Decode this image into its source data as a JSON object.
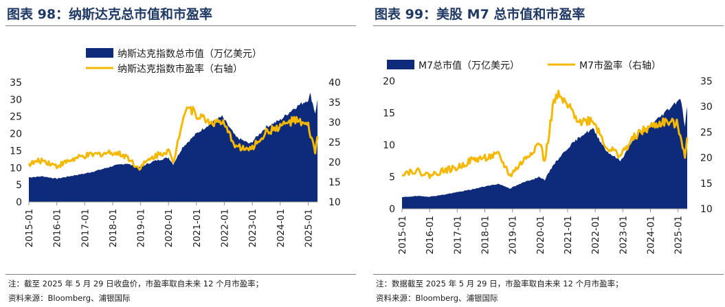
{
  "charts": [
    {
      "figure_title": "图表 98：纳斯达克总市值和市盈率",
      "note": "注：截至 2025 年 5 月 29 日收盘价，市盈率取自未来 12 个月市盈率；",
      "source": "资料来源：Bloomberg、浦银国际",
      "colors": {
        "area": "#0d2b7a",
        "line": "#f5b800"
      }
    },
    {
      "figure_title": "图表 99：美股 M7 总市值和市盈率",
      "note": "注：数据截至 2025 年 5 月 29 日，市盈率取自未来 12 个月市盈率；",
      "source": "资料来源：Bloomberg、浦银国际",
      "colors": {
        "area": "#0d2b7a",
        "line": "#f5b800"
      }
    }
  ],
  "chart_data": [
    {
      "type": "area",
      "legend": [
        "纳斯达克指数总市值（万亿美元）",
        "纳斯达克指数市盈率（右轴）"
      ],
      "legend_position": "top",
      "x_ticks": [
        "2015-01",
        "2016-01",
        "2017-01",
        "2018-01",
        "2019-01",
        "2020-01",
        "2021-01",
        "2022-01",
        "2023-01",
        "2024-01",
        "2025-01"
      ],
      "y_left": {
        "range": [
          0,
          35
        ],
        "ticks": [
          0,
          5,
          10,
          15,
          20,
          25,
          30,
          35
        ]
      },
      "y_right": {
        "range": [
          10,
          40
        ],
        "ticks": [
          10,
          15,
          20,
          25,
          30,
          35,
          40
        ]
      },
      "grid": false,
      "series": [
        {
          "name": "纳斯达克指数总市值（万亿美元）",
          "axis": "left",
          "style": "area",
          "x": [
            "2015-01",
            "2015-07",
            "2016-01",
            "2016-07",
            "2017-01",
            "2017-07",
            "2018-01",
            "2018-07",
            "2018-12",
            "2019-07",
            "2020-01",
            "2020-03",
            "2020-07",
            "2021-01",
            "2021-07",
            "2021-12",
            "2022-06",
            "2022-12",
            "2023-07",
            "2024-01",
            "2024-07",
            "2025-01",
            "2025-02",
            "2025-04",
            "2025-05"
          ],
          "values": [
            7.2,
            7.5,
            6.8,
            7.6,
            8.3,
            9.3,
            10.5,
            11.3,
            10.0,
            12.0,
            13.0,
            11.0,
            16.0,
            20.0,
            23.0,
            25.0,
            19.0,
            17.0,
            22.0,
            24.0,
            27.5,
            30.0,
            31.5,
            26.0,
            30.0
          ]
        },
        {
          "name": "纳斯达克指数市盈率（右轴）",
          "axis": "right",
          "style": "line",
          "x": [
            "2015-01",
            "2015-07",
            "2016-01",
            "2016-07",
            "2017-01",
            "2017-07",
            "2018-01",
            "2018-07",
            "2018-12",
            "2019-07",
            "2020-01",
            "2020-03",
            "2020-07",
            "2020-09",
            "2021-01",
            "2021-07",
            "2021-12",
            "2022-06",
            "2022-12",
            "2023-07",
            "2024-01",
            "2024-07",
            "2025-01",
            "2025-04",
            "2025-05"
          ],
          "values": [
            19.5,
            20.5,
            19.0,
            20.5,
            21.5,
            22.0,
            22.5,
            21.5,
            18.5,
            21.5,
            23.0,
            19.5,
            31.0,
            34.0,
            32.0,
            30.0,
            30.0,
            24.0,
            23.0,
            27.5,
            29.0,
            30.5,
            29.0,
            22.5,
            26.5
          ]
        }
      ]
    },
    {
      "type": "area",
      "legend": [
        "M7总市值（万亿美元）",
        "M7市盈率（右轴）"
      ],
      "legend_position": "top",
      "x_ticks": [
        "2015-01",
        "2016-01",
        "2017-01",
        "2018-01",
        "2019-01",
        "2020-01",
        "2021-01",
        "2022-01",
        "2023-01",
        "2024-01",
        "2025-01"
      ],
      "y_left": {
        "range": [
          0,
          20
        ],
        "ticks": [
          0,
          5,
          10,
          15,
          20
        ]
      },
      "y_right": {
        "range": [
          10,
          35
        ],
        "ticks": [
          10,
          15,
          20,
          25,
          30,
          35
        ]
      },
      "grid": false,
      "series": [
        {
          "name": "M7总市值（万亿美元）",
          "axis": "left",
          "style": "area",
          "x": [
            "2015-01",
            "2015-07",
            "2016-01",
            "2016-07",
            "2017-01",
            "2017-07",
            "2018-01",
            "2018-07",
            "2018-12",
            "2019-07",
            "2020-01",
            "2020-03",
            "2020-07",
            "2021-01",
            "2021-07",
            "2021-12",
            "2022-06",
            "2022-12",
            "2023-07",
            "2024-01",
            "2024-07",
            "2025-01",
            "2025-02",
            "2025-04",
            "2025-05"
          ],
          "values": [
            1.8,
            2.0,
            1.9,
            2.2,
            2.6,
            3.0,
            3.5,
            3.9,
            3.2,
            4.3,
            5.0,
            4.5,
            7.0,
            9.5,
            11.5,
            12.5,
            9.0,
            7.5,
            11.5,
            13.0,
            15.0,
            17.0,
            17.5,
            13.0,
            16.0
          ]
        },
        {
          "name": "M7市盈率（右轴）",
          "axis": "right",
          "style": "line",
          "x": [
            "2015-01",
            "2015-07",
            "2016-01",
            "2016-07",
            "2017-01",
            "2017-07",
            "2018-01",
            "2018-07",
            "2018-12",
            "2019-07",
            "2020-01",
            "2020-03",
            "2020-07",
            "2020-09",
            "2021-01",
            "2021-07",
            "2021-12",
            "2022-06",
            "2022-12",
            "2023-07",
            "2024-01",
            "2024-07",
            "2025-01",
            "2025-04",
            "2025-05"
          ],
          "values": [
            17.0,
            17.5,
            16.5,
            17.5,
            18.0,
            19.5,
            20.0,
            20.5,
            16.5,
            20.0,
            23.0,
            19.0,
            31.0,
            32.0,
            30.0,
            27.0,
            27.5,
            22.0,
            20.5,
            24.5,
            26.0,
            27.0,
            26.5,
            20.5,
            24.0
          ]
        }
      ]
    }
  ]
}
